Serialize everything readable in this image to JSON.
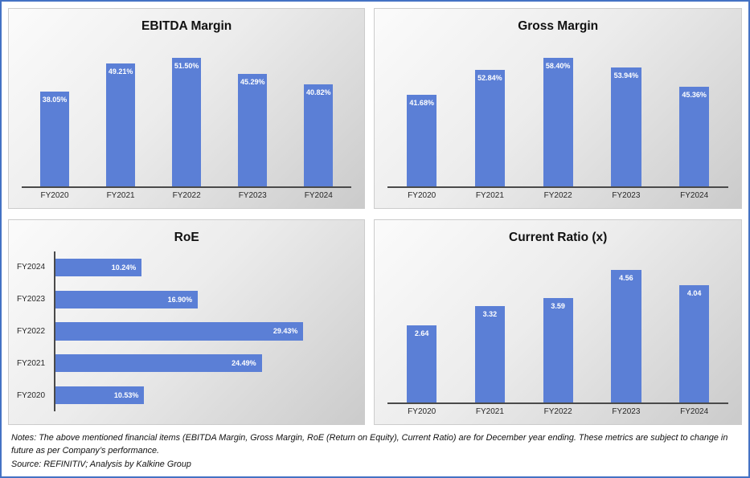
{
  "accent": {
    "bar_color": "#5B7FD6",
    "axis_color": "#4a4a4a",
    "frame_border_color": "#4472C4"
  },
  "chart_data": [
    {
      "type": "bar",
      "orientation": "vertical",
      "title": "EBITDA Margin",
      "categories": [
        "FY2020",
        "FY2021",
        "FY2022",
        "FY2023",
        "FY2024"
      ],
      "values": [
        38.05,
        49.21,
        51.5,
        45.29,
        40.82
      ],
      "labels": [
        "38.05%",
        "49.21%",
        "51.50%",
        "45.29%",
        "40.82%"
      ],
      "xlabel": "",
      "ylabel": "",
      "ylim": [
        0,
        60
      ],
      "grid": false,
      "legend": false
    },
    {
      "type": "bar",
      "orientation": "vertical",
      "title": "Gross Margin",
      "categories": [
        "FY2020",
        "FY2021",
        "FY2022",
        "FY2023",
        "FY2024"
      ],
      "values": [
        41.68,
        52.84,
        58.4,
        53.94,
        45.36
      ],
      "labels": [
        "41.68%",
        "52.84%",
        "58.40%",
        "53.94%",
        "45.36%"
      ],
      "xlabel": "",
      "ylabel": "",
      "ylim": [
        0,
        68
      ],
      "grid": false,
      "legend": false
    },
    {
      "type": "bar",
      "orientation": "horizontal",
      "title": "RoE",
      "categories": [
        "FY2024",
        "FY2023",
        "FY2022",
        "FY2021",
        "FY2020"
      ],
      "values": [
        10.24,
        16.9,
        29.43,
        24.49,
        10.53
      ],
      "labels": [
        "10.24%",
        "16.90%",
        "29.43%",
        "24.49%",
        "10.53%"
      ],
      "xlabel": "",
      "ylabel": "",
      "xlim": [
        0,
        34
      ],
      "grid": false,
      "legend": false
    },
    {
      "type": "bar",
      "orientation": "vertical",
      "title": "Current Ratio (x)",
      "categories": [
        "FY2020",
        "FY2021",
        "FY2022",
        "FY2023",
        "FY2024"
      ],
      "values": [
        2.64,
        3.32,
        3.59,
        4.56,
        4.04
      ],
      "labels": [
        "2.64",
        "3.32",
        "3.59",
        "4.56",
        "4.04"
      ],
      "xlabel": "",
      "ylabel": "",
      "ylim": [
        0,
        5.3
      ],
      "grid": false,
      "legend": false
    }
  ],
  "notes": {
    "text": "Notes: The above mentioned financial items (EBITDA Margin, Gross Margin, RoE (Return on Equity), Current Ratio) are for December year ending. These metrics are subject to change in future as per Company’s performance.",
    "source": "Source: REFINITIV; Analysis by Kalkine Group"
  }
}
